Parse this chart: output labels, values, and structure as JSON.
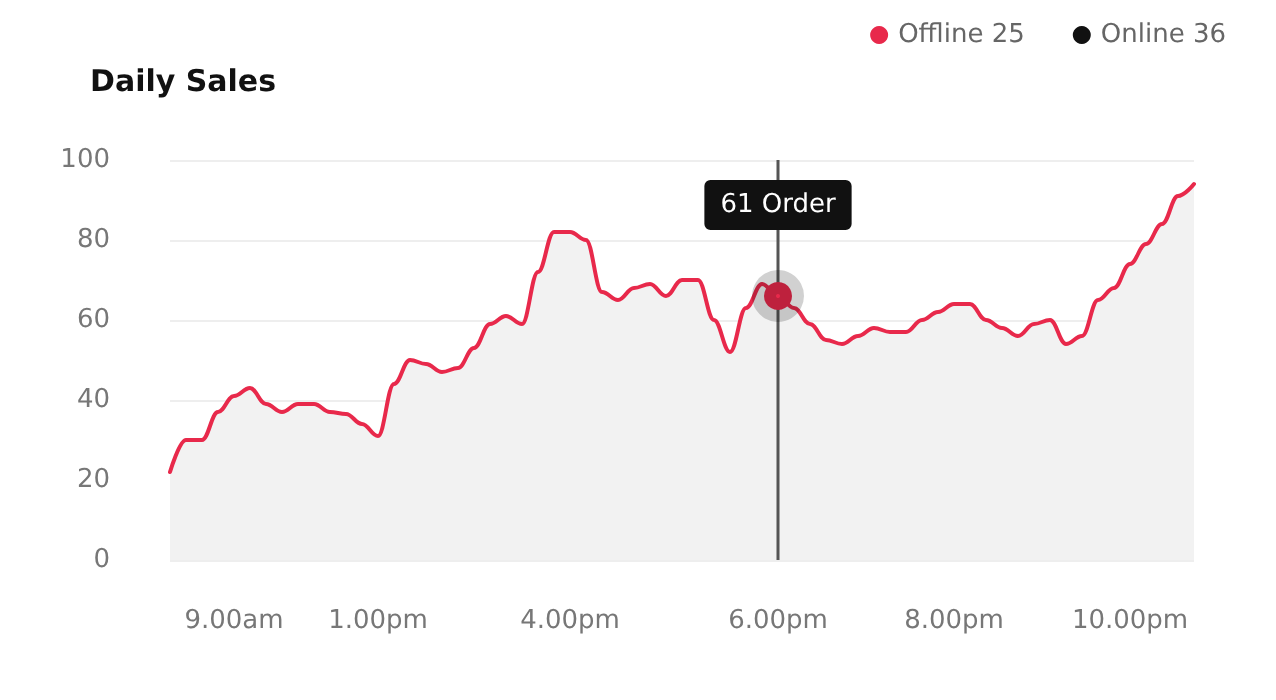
{
  "chart_data": {
    "type": "area",
    "title": "Daily Sales",
    "categories": [
      null,
      null,
      null,
      null,
      "9.00am",
      null,
      null,
      null,
      null,
      null,
      null,
      null,
      null,
      "1.00pm",
      null,
      null,
      null,
      null,
      null,
      null,
      null,
      null,
      null,
      null,
      null,
      "4.00pm",
      null,
      null,
      null,
      null,
      null,
      null,
      null,
      null,
      null,
      null,
      null,
      null,
      "6.00pm",
      null,
      null,
      null,
      null,
      null,
      null,
      null,
      null,
      null,
      null,
      "8.00pm",
      null,
      null,
      null,
      null,
      null,
      null,
      null,
      null,
      null,
      null,
      "10.00pm",
      null,
      null,
      null,
      null
    ],
    "series": [
      {
        "name": "Offline 25",
        "color": "#e8294b",
        "values": [
          22,
          30,
          30,
          37,
          41,
          43,
          39,
          37,
          39,
          39,
          37,
          36.5,
          34,
          31,
          44,
          50,
          49,
          47,
          48,
          53,
          59,
          61,
          59,
          72,
          82,
          82,
          80,
          67,
          65,
          68,
          69,
          66,
          70,
          70,
          60,
          52,
          63,
          69,
          66,
          63,
          59,
          55,
          54,
          56,
          58,
          57,
          57,
          60,
          62,
          64,
          64,
          60,
          58,
          56,
          59,
          60,
          54,
          56,
          65,
          68,
          74,
          79,
          84,
          91,
          94
        ]
      },
      {
        "name": "Online 36",
        "color": "#111111",
        "values": [
          null,
          null,
          null,
          null,
          null,
          null,
          null,
          null,
          null,
          null,
          null,
          null,
          null,
          null,
          null,
          null,
          null,
          null,
          null,
          null,
          null,
          null,
          null,
          null,
          null,
          null,
          null,
          null,
          null,
          null,
          null,
          null,
          null,
          null,
          null,
          null,
          null,
          null,
          null,
          null,
          null,
          null,
          null,
          null,
          null,
          null,
          null,
          null,
          null,
          null,
          null,
          null,
          null,
          null,
          null,
          null,
          null,
          null,
          null,
          null,
          null,
          null,
          null,
          null,
          null
        ]
      }
    ],
    "ylim": [
      0,
      100
    ],
    "yticks": [
      0,
      20,
      40,
      60,
      80,
      100
    ],
    "grid": "y",
    "legend": "top right",
    "marker": "none",
    "annotations": [
      {
        "text": "61 Order",
        "x": "6.00pm",
        "y": 66
      }
    ]
  }
}
